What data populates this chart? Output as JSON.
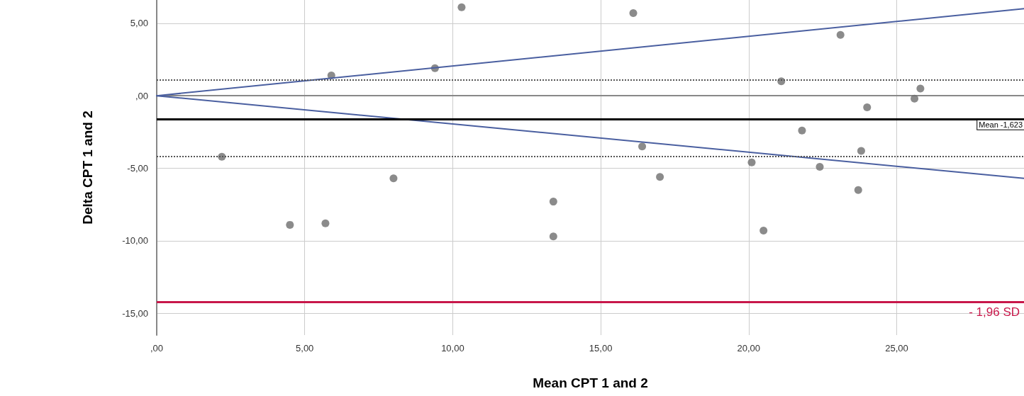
{
  "chart_data": {
    "type": "scatter",
    "xlabel": "Mean CPT 1 and 2",
    "ylabel": "Delta CPT 1 and 2",
    "xlim": [
      0,
      29.3
    ],
    "ylim": [
      -16.5,
      6.6
    ],
    "xticks": [
      {
        "value": 0,
        "label": ",00"
      },
      {
        "value": 5,
        "label": "5,00"
      },
      {
        "value": 10,
        "label": "10,00"
      },
      {
        "value": 15,
        "label": "15,00"
      },
      {
        "value": 20,
        "label": "20,00"
      },
      {
        "value": 25,
        "label": "25,00"
      }
    ],
    "yticks": [
      {
        "value": -15,
        "label": "-15,00"
      },
      {
        "value": -10,
        "label": "-10,00"
      },
      {
        "value": -5,
        "label": "-5,00"
      },
      {
        "value": 0,
        "label": ",00"
      },
      {
        "value": 5,
        "label": "5,00"
      }
    ],
    "grid": true,
    "marker": "circle",
    "series": [
      {
        "color": "#6e6e6e",
        "x": [
          2.2,
          4.5,
          5.7,
          5.9,
          8.0,
          9.4,
          10.3,
          13.4,
          13.4,
          16.1,
          16.4,
          17.0,
          20.1,
          20.5,
          21.1,
          21.8,
          22.4,
          23.1,
          23.7,
          23.8,
          24.0,
          25.6,
          25.8
        ],
        "values": [
          -4.2,
          -8.9,
          -8.8,
          1.4,
          -5.7,
          1.9,
          6.1,
          -7.3,
          -9.7,
          5.7,
          -3.5,
          -5.6,
          -4.6,
          -9.3,
          1.0,
          -2.4,
          -4.9,
          4.2,
          -6.5,
          -3.8,
          -0.8,
          -0.2,
          0.5
        ]
      },
      {
        "type": "line",
        "marker": "none",
        "color": "#4a5fa0",
        "x": [
          0,
          29.3
        ],
        "values": [
          0,
          6.0
        ]
      },
      {
        "type": "line",
        "marker": "none",
        "color": "#4a5fa0",
        "x": [
          0,
          29.3
        ],
        "values": [
          0,
          -5.7
        ]
      }
    ],
    "ref_lines": [
      {
        "axis": "y",
        "value": -1.623,
        "label": "Mean -1,623",
        "color": "#000000",
        "line_style": "solid"
      },
      {
        "axis": "y",
        "value": 1.1,
        "color": "#555555",
        "line_style": "dotted"
      },
      {
        "axis": "y",
        "value": -4.2,
        "color": "#555555",
        "line_style": "dotted"
      },
      {
        "axis": "y",
        "value": -14.2,
        "label": "- 1,96 SD",
        "color": "#c8174a",
        "line_style": "solid"
      }
    ]
  }
}
